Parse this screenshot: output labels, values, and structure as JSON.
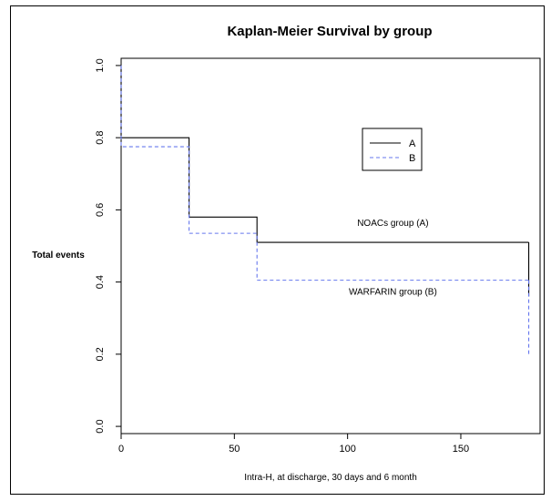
{
  "chart_data": {
    "type": "line",
    "step": true,
    "title": "Kaplan-Meier Survival by group",
    "xlabel": "Intra-H, at discharge, 30 days and 6 month",
    "ylabel": "Total events",
    "xlim": [
      0,
      185
    ],
    "ylim": [
      -0.02,
      1.02
    ],
    "x_ticks": [
      0,
      50,
      100,
      150
    ],
    "y_ticks": [
      "0.0",
      "0.2",
      "0.4",
      "0.6",
      "0.8",
      "1.0"
    ],
    "legend_position": "top-right",
    "grid": false,
    "series": [
      {
        "name": "A",
        "color": "#000000",
        "style": "solid",
        "x": [
          0,
          30,
          60,
          180
        ],
        "y": [
          0.8,
          0.58,
          0.51,
          0.51
        ],
        "drops": [
          {
            "x": 0,
            "from": 1.0,
            "to": 0.8
          },
          {
            "x": 180,
            "from": 0.51,
            "to": 0.36
          }
        ]
      },
      {
        "name": "B",
        "color": "#6677ee",
        "style": "dashed",
        "x": [
          0,
          30,
          60,
          180
        ],
        "y": [
          0.775,
          0.535,
          0.405,
          0.405
        ],
        "drops": [
          {
            "x": 0,
            "from": 1.0,
            "to": 0.775
          },
          {
            "x": 180,
            "from": 0.405,
            "to": 0.2
          }
        ]
      }
    ],
    "annotations": [
      {
        "text": "NOACs group (A)",
        "x": 120,
        "y": 0.555
      },
      {
        "text": "WARFARIN group (B)",
        "x": 120,
        "y": 0.365
      }
    ]
  }
}
